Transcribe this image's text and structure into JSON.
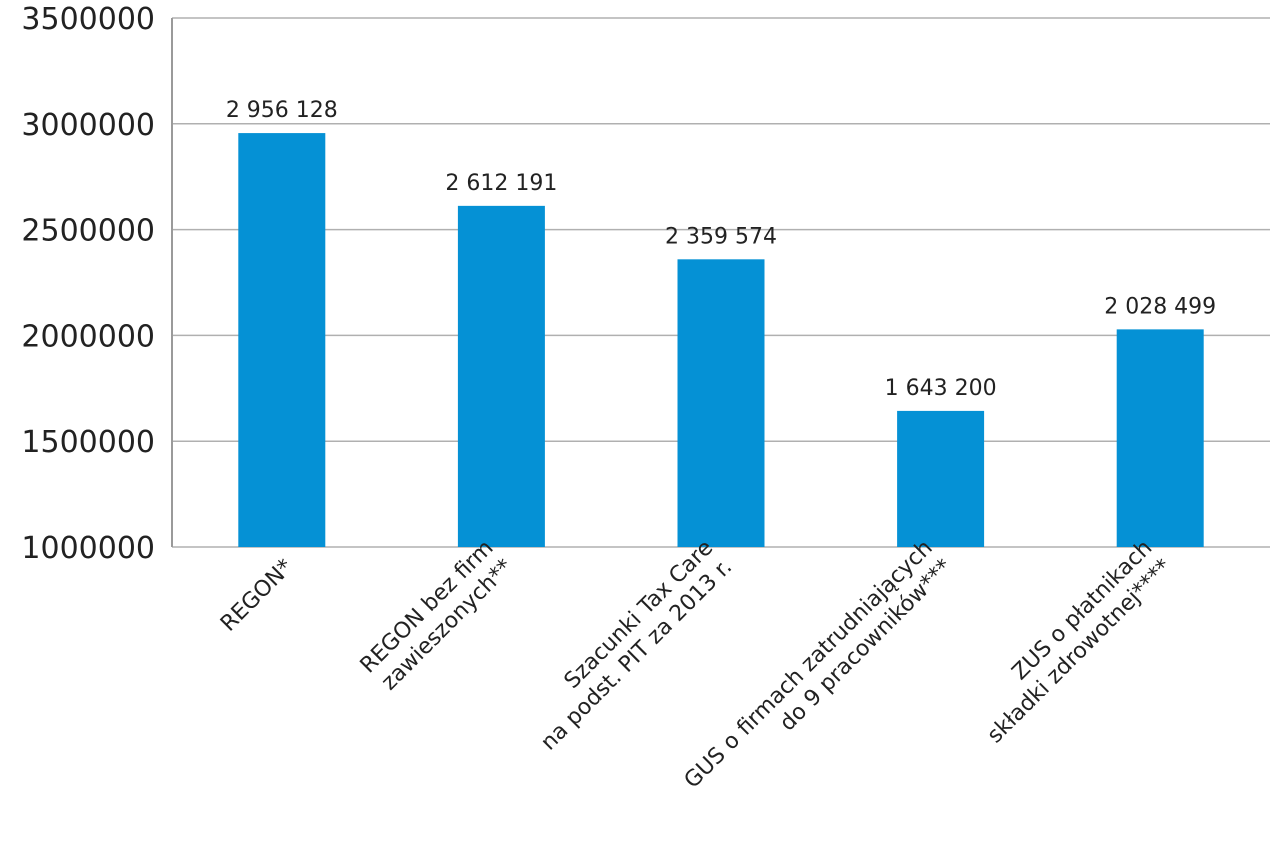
{
  "chart_data": {
    "type": "bar",
    "title": "",
    "xlabel": "",
    "ylabel": "",
    "ylim": [
      1000000,
      3500000
    ],
    "yticks": [
      1000000,
      1500000,
      2000000,
      2500000,
      3000000,
      3500000
    ],
    "ytick_labels": [
      "1000000",
      "1500000",
      "2000000",
      "2500000",
      "3000000",
      "3500000"
    ],
    "grid": true,
    "categories": [
      [
        "REGON*"
      ],
      [
        "REGON bez firm",
        "zawieszonych**"
      ],
      [
        "Szacunki Tax Care",
        "na podst. PIT za 2013 r."
      ],
      [
        "GUS o firmach zatrudniających",
        "do 9 pracowników***"
      ],
      [
        "ZUS o płatnikach",
        "składki zdrowotnej****"
      ]
    ],
    "values": [
      2956128,
      2612191,
      2359574,
      1643200,
      2028499
    ],
    "value_labels": [
      "2 956 128",
      "2 612 191",
      "2 359 574",
      "1 643 200",
      "2 028 499"
    ],
    "colors": {
      "bar": "#0591d5",
      "grid": "#b0b0b0",
      "text": "#222222"
    }
  }
}
